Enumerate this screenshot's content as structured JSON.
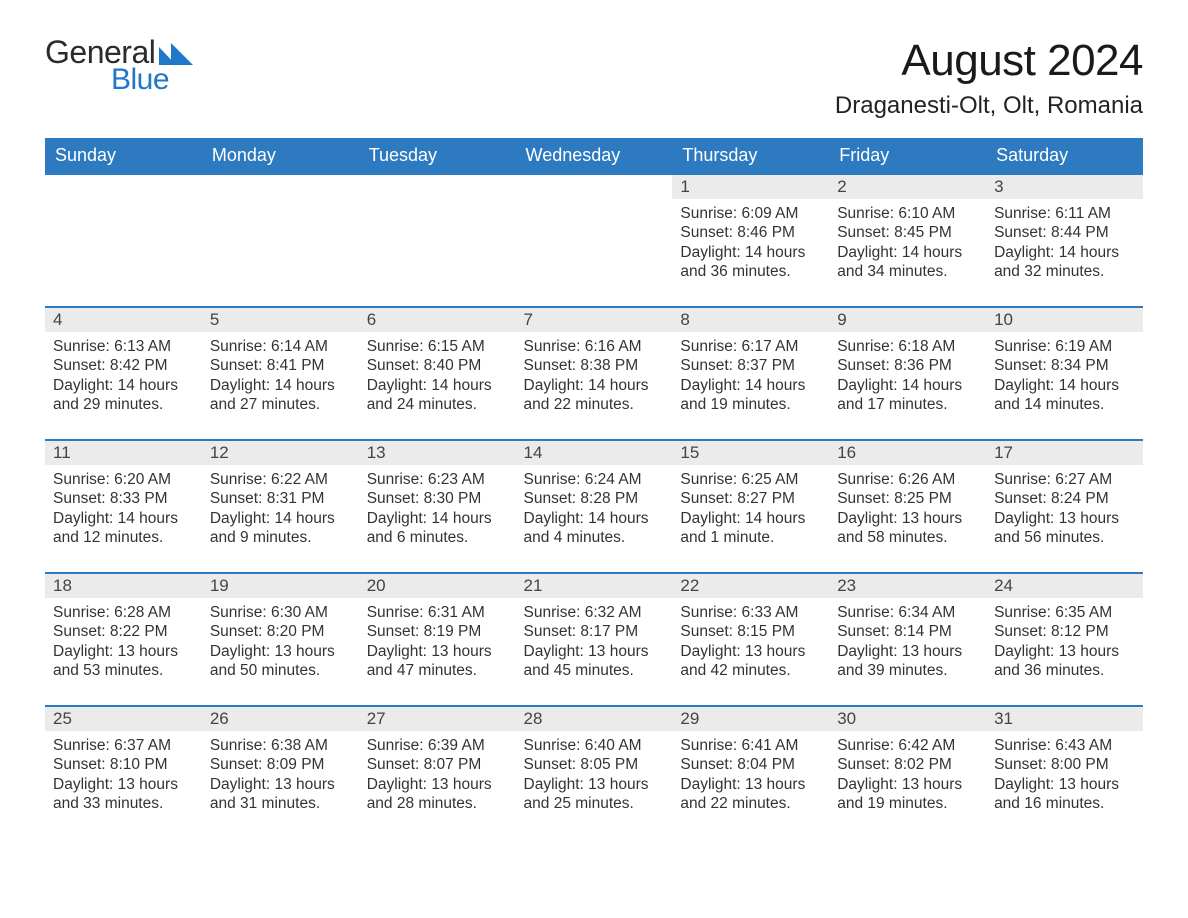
{
  "logo": {
    "text_general": "General",
    "text_blue": "Blue",
    "triangle_color_1": "#1f78c8",
    "triangle_color_2": "#1f78c8"
  },
  "header": {
    "month_title": "August 2024",
    "location": "Draganesti-Olt, Olt, Romania"
  },
  "colors": {
    "header_bg": "#2d7ac0",
    "header_text": "#ffffff",
    "daynum_bg": "#ebebeb",
    "daynum_border": "#2d7ac0",
    "body_text": "#333333",
    "page_bg": "#ffffff"
  },
  "typography": {
    "month_title_fontsize": 44,
    "location_fontsize": 24,
    "weekday_fontsize": 18,
    "daynum_fontsize": 17,
    "detail_fontsize": 15.5
  },
  "weekdays": [
    "Sunday",
    "Monday",
    "Tuesday",
    "Wednesday",
    "Thursday",
    "Friday",
    "Saturday"
  ],
  "calendar": {
    "type": "table",
    "columns": 7,
    "rows": 5,
    "first_day_column_index": 4,
    "days": [
      {
        "day": 1,
        "sunrise": "6:09 AM",
        "sunset": "8:46 PM",
        "daylight": "14 hours and 36 minutes."
      },
      {
        "day": 2,
        "sunrise": "6:10 AM",
        "sunset": "8:45 PM",
        "daylight": "14 hours and 34 minutes."
      },
      {
        "day": 3,
        "sunrise": "6:11 AM",
        "sunset": "8:44 PM",
        "daylight": "14 hours and 32 minutes."
      },
      {
        "day": 4,
        "sunrise": "6:13 AM",
        "sunset": "8:42 PM",
        "daylight": "14 hours and 29 minutes."
      },
      {
        "day": 5,
        "sunrise": "6:14 AM",
        "sunset": "8:41 PM",
        "daylight": "14 hours and 27 minutes."
      },
      {
        "day": 6,
        "sunrise": "6:15 AM",
        "sunset": "8:40 PM",
        "daylight": "14 hours and 24 minutes."
      },
      {
        "day": 7,
        "sunrise": "6:16 AM",
        "sunset": "8:38 PM",
        "daylight": "14 hours and 22 minutes."
      },
      {
        "day": 8,
        "sunrise": "6:17 AM",
        "sunset": "8:37 PM",
        "daylight": "14 hours and 19 minutes."
      },
      {
        "day": 9,
        "sunrise": "6:18 AM",
        "sunset": "8:36 PM",
        "daylight": "14 hours and 17 minutes."
      },
      {
        "day": 10,
        "sunrise": "6:19 AM",
        "sunset": "8:34 PM",
        "daylight": "14 hours and 14 minutes."
      },
      {
        "day": 11,
        "sunrise": "6:20 AM",
        "sunset": "8:33 PM",
        "daylight": "14 hours and 12 minutes."
      },
      {
        "day": 12,
        "sunrise": "6:22 AM",
        "sunset": "8:31 PM",
        "daylight": "14 hours and 9 minutes."
      },
      {
        "day": 13,
        "sunrise": "6:23 AM",
        "sunset": "8:30 PM",
        "daylight": "14 hours and 6 minutes."
      },
      {
        "day": 14,
        "sunrise": "6:24 AM",
        "sunset": "8:28 PM",
        "daylight": "14 hours and 4 minutes."
      },
      {
        "day": 15,
        "sunrise": "6:25 AM",
        "sunset": "8:27 PM",
        "daylight": "14 hours and 1 minute."
      },
      {
        "day": 16,
        "sunrise": "6:26 AM",
        "sunset": "8:25 PM",
        "daylight": "13 hours and 58 minutes."
      },
      {
        "day": 17,
        "sunrise": "6:27 AM",
        "sunset": "8:24 PM",
        "daylight": "13 hours and 56 minutes."
      },
      {
        "day": 18,
        "sunrise": "6:28 AM",
        "sunset": "8:22 PM",
        "daylight": "13 hours and 53 minutes."
      },
      {
        "day": 19,
        "sunrise": "6:30 AM",
        "sunset": "8:20 PM",
        "daylight": "13 hours and 50 minutes."
      },
      {
        "day": 20,
        "sunrise": "6:31 AM",
        "sunset": "8:19 PM",
        "daylight": "13 hours and 47 minutes."
      },
      {
        "day": 21,
        "sunrise": "6:32 AM",
        "sunset": "8:17 PM",
        "daylight": "13 hours and 45 minutes."
      },
      {
        "day": 22,
        "sunrise": "6:33 AM",
        "sunset": "8:15 PM",
        "daylight": "13 hours and 42 minutes."
      },
      {
        "day": 23,
        "sunrise": "6:34 AM",
        "sunset": "8:14 PM",
        "daylight": "13 hours and 39 minutes."
      },
      {
        "day": 24,
        "sunrise": "6:35 AM",
        "sunset": "8:12 PM",
        "daylight": "13 hours and 36 minutes."
      },
      {
        "day": 25,
        "sunrise": "6:37 AM",
        "sunset": "8:10 PM",
        "daylight": "13 hours and 33 minutes."
      },
      {
        "day": 26,
        "sunrise": "6:38 AM",
        "sunset": "8:09 PM",
        "daylight": "13 hours and 31 minutes."
      },
      {
        "day": 27,
        "sunrise": "6:39 AM",
        "sunset": "8:07 PM",
        "daylight": "13 hours and 28 minutes."
      },
      {
        "day": 28,
        "sunrise": "6:40 AM",
        "sunset": "8:05 PM",
        "daylight": "13 hours and 25 minutes."
      },
      {
        "day": 29,
        "sunrise": "6:41 AM",
        "sunset": "8:04 PM",
        "daylight": "13 hours and 22 minutes."
      },
      {
        "day": 30,
        "sunrise": "6:42 AM",
        "sunset": "8:02 PM",
        "daylight": "13 hours and 19 minutes."
      },
      {
        "day": 31,
        "sunrise": "6:43 AM",
        "sunset": "8:00 PM",
        "daylight": "13 hours and 16 minutes."
      }
    ]
  },
  "labels": {
    "sunrise_prefix": "Sunrise: ",
    "sunset_prefix": "Sunset: ",
    "daylight_prefix": "Daylight: "
  }
}
